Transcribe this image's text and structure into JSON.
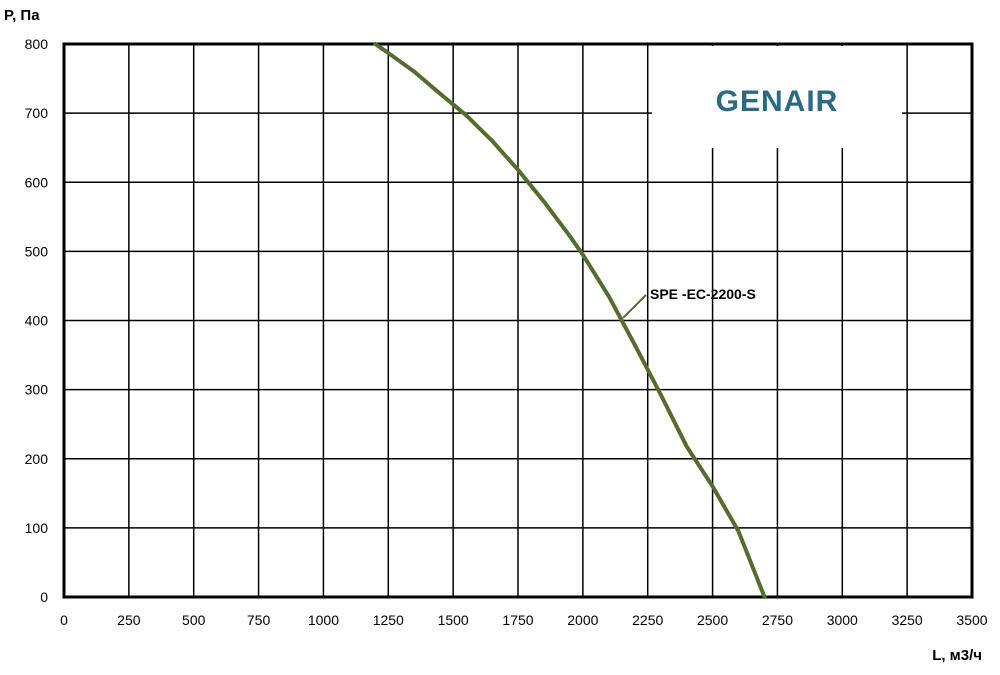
{
  "chart_data": {
    "type": "line",
    "title": "",
    "xlabel": "L, м3/ч",
    "ylabel": "P, Па",
    "xlim": [
      0,
      3500
    ],
    "ylim": [
      0,
      800
    ],
    "xticks": [
      0,
      250,
      500,
      750,
      1000,
      1250,
      1500,
      1750,
      2000,
      2250,
      2500,
      2750,
      3000,
      3250,
      3500
    ],
    "yticks": [
      0,
      100,
      200,
      300,
      400,
      500,
      600,
      700,
      800
    ],
    "xtick_labels": [
      "0",
      "250",
      "500",
      "750",
      "1000",
      "1250",
      "1500",
      "1750",
      "2000",
      "2250",
      "2500",
      "2750",
      "3000",
      "3250",
      "3500"
    ],
    "ytick_labels": [
      "0",
      "100",
      "200",
      "300",
      "400",
      "500",
      "600",
      "700",
      "800"
    ],
    "grid": true,
    "logo_text": "GENAIR",
    "series": [
      {
        "name": "SPE -EC-2200-S",
        "color": "#556b2f",
        "x": [
          1200,
          1250,
          1350,
          1450,
          1550,
          1650,
          1750,
          1850,
          1950,
          2000,
          2100,
          2200,
          2300,
          2400,
          2500,
          2600,
          2700
        ],
        "y": [
          800,
          787,
          760,
          728,
          697,
          660,
          618,
          572,
          522,
          495,
          435,
          365,
          293,
          218,
          160,
          95,
          0
        ]
      }
    ]
  }
}
